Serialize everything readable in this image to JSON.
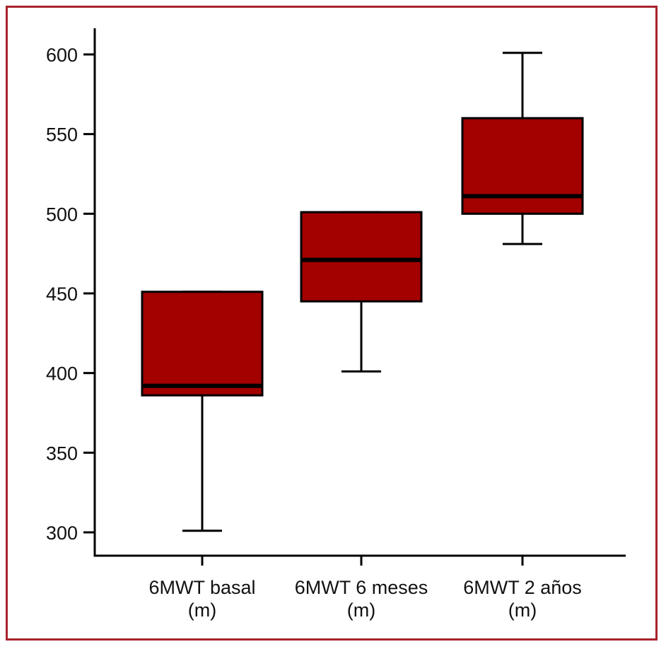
{
  "chart_data": {
    "type": "boxplot",
    "title": "",
    "xlabel": "",
    "ylabel": "",
    "ylim": [
      285,
      615
    ],
    "yticks": [
      300,
      350,
      400,
      450,
      500,
      550,
      600
    ],
    "grid": false,
    "legend": "none",
    "box_color": "#a30000",
    "border_color": "#a8232c",
    "categories": [
      {
        "label_line1": "6MWT basal",
        "label_line2": "(m)"
      },
      {
        "label_line1": "6MWT 6 meses",
        "label_line2": "(m)"
      },
      {
        "label_line1": "6MWT 2 años",
        "label_line2": "(m)"
      }
    ],
    "boxes": [
      {
        "whisker_low": 301,
        "q1": 386,
        "median": 392,
        "q3": 451,
        "whisker_high": 451
      },
      {
        "whisker_low": 401,
        "q1": 445,
        "median": 471,
        "q3": 501,
        "whisker_high": 501
      },
      {
        "whisker_low": 481,
        "q1": 500,
        "median": 511,
        "q3": 560,
        "whisker_high": 601
      }
    ]
  }
}
